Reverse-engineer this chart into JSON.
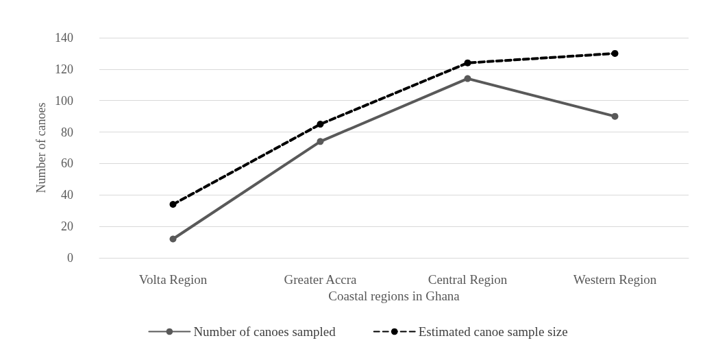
{
  "chart_data": {
    "type": "line",
    "xlabel": "Coastal regions in Ghana",
    "ylabel": "Number of canoes",
    "categories": [
      "Volta Region",
      "Greater Accra",
      "Central Region",
      "Western Region"
    ],
    "series": [
      {
        "name": "Number of canoes sampled",
        "color": "#595959",
        "values": [
          12,
          74,
          114,
          90
        ],
        "line_style": "solid"
      },
      {
        "name": "Estimated canoe sample size",
        "color": "#000000",
        "values": [
          34,
          85,
          124,
          130
        ],
        "line_style": "dashed"
      }
    ],
    "ylim": [
      0,
      140
    ],
    "yticks": [
      0,
      20,
      40,
      60,
      80,
      100,
      120,
      140
    ],
    "grid": "y",
    "legend": "bottom",
    "marker": "circle"
  }
}
